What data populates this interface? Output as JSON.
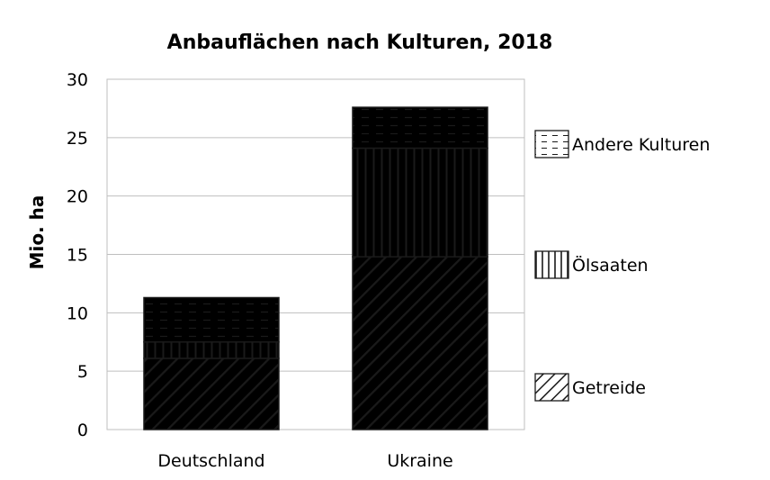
{
  "chart_data": {
    "type": "bar",
    "stacked": true,
    "title": "Anbauflächen nach Kulturen, 2018",
    "xlabel": "",
    "ylabel": "Mio. ha",
    "ylim": [
      0,
      30
    ],
    "yticks": [
      0,
      5,
      10,
      15,
      20,
      25,
      30
    ],
    "grid": true,
    "legend_position": "right",
    "categories": [
      "Deutschland",
      "Ukraine"
    ],
    "category_colors": {
      "Deutschland": "#a9c4e6",
      "Ukraine": "#c5d98f"
    },
    "series": [
      {
        "name": "Getreide",
        "pattern": "diagonal-stripes",
        "values": [
          6.1,
          14.8
        ]
      },
      {
        "name": "Ölsaaten",
        "pattern": "vertical-stripes",
        "values": [
          1.4,
          9.3
        ]
      },
      {
        "name": "Andere Kulturen",
        "pattern": "dashed-horizontal",
        "values": [
          3.8,
          3.5
        ]
      }
    ]
  }
}
